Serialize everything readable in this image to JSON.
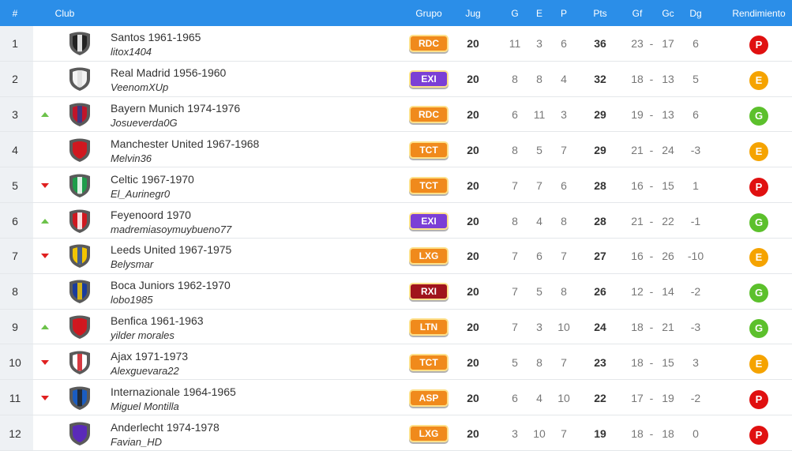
{
  "table": {
    "header": [
      "#",
      "Club",
      "Grupo",
      "Jug",
      "G",
      "E",
      "P",
      "Pts",
      "Gf",
      "Gc",
      "Dg",
      "Rendimiento"
    ],
    "separator": "-",
    "header_color": "#2b8ee8",
    "trend_colors": {
      "up": "#6cc24a",
      "down": "#e02020"
    },
    "rating_colors": {
      "P": "#e01010",
      "E": "#f5a300",
      "G": "#5cc02c"
    },
    "rows": [
      {
        "pos": 1,
        "trend": null,
        "club": "Santos 1961-1965",
        "user": "litox1404",
        "group": "RDC",
        "group_color": "#f08a1c",
        "crest": [
          "#222222",
          "#ffffff"
        ],
        "jug": 20,
        "g": 11,
        "e": 3,
        "p": 6,
        "pts": 36,
        "gf": 23,
        "gc": 17,
        "dg": 6,
        "rating": "P"
      },
      {
        "pos": 2,
        "trend": null,
        "club": "Real Madrid 1956-1960",
        "user": "VeenomXUp",
        "group": "EXI",
        "group_color": "#7b3fd6",
        "crest": [
          "#f4f4f4",
          "#dddddd"
        ],
        "jug": 20,
        "g": 8,
        "e": 8,
        "p": 4,
        "pts": 32,
        "gf": 18,
        "gc": 13,
        "dg": 5,
        "rating": "E"
      },
      {
        "pos": 3,
        "trend": "up",
        "club": "Bayern Munich 1974-1976",
        "user": "Josueverda0G",
        "group": "RDC",
        "group_color": "#f08a1c",
        "crest": [
          "#c0152a",
          "#2a3c8c"
        ],
        "jug": 20,
        "g": 6,
        "e": 11,
        "p": 3,
        "pts": 29,
        "gf": 19,
        "gc": 13,
        "dg": 6,
        "rating": "G"
      },
      {
        "pos": 4,
        "trend": null,
        "club": "Manchester United 1967-1968",
        "user": "Melvin36",
        "group": "TCT",
        "group_color": "#f08a1c",
        "crest": [
          "#d01820",
          "#d01820"
        ],
        "jug": 20,
        "g": 8,
        "e": 5,
        "p": 7,
        "pts": 29,
        "gf": 21,
        "gc": 24,
        "dg": -3,
        "rating": "E"
      },
      {
        "pos": 5,
        "trend": "down",
        "club": "Celtic 1967-1970",
        "user": "El_Aurinegr0",
        "group": "TCT",
        "group_color": "#f08a1c",
        "crest": [
          "#1e9c4a",
          "#ffffff"
        ],
        "jug": 20,
        "g": 7,
        "e": 7,
        "p": 6,
        "pts": 28,
        "gf": 16,
        "gc": 15,
        "dg": 1,
        "rating": "P"
      },
      {
        "pos": 6,
        "trend": "up",
        "club": "Feyenoord 1970",
        "user": "madremiasoymuybueno77",
        "group": "EXI",
        "group_color": "#7b3fd6",
        "crest": [
          "#d01820",
          "#ffffff"
        ],
        "jug": 20,
        "g": 8,
        "e": 4,
        "p": 8,
        "pts": 28,
        "gf": 21,
        "gc": 22,
        "dg": -1,
        "rating": "G"
      },
      {
        "pos": 7,
        "trend": "down",
        "club": "Leeds United 1967-1975",
        "user": "Belysmar",
        "group": "LXG",
        "group_color": "#f08a1c",
        "crest": [
          "#f2c500",
          "#2a4ca0"
        ],
        "jug": 20,
        "g": 7,
        "e": 6,
        "p": 7,
        "pts": 27,
        "gf": 16,
        "gc": 26,
        "dg": -10,
        "rating": "E"
      },
      {
        "pos": 8,
        "trend": null,
        "club": "Boca Juniors 1962-1970",
        "user": "lobo1985",
        "group": "RXI",
        "group_color": "#a0141c",
        "crest": [
          "#1a3c9c",
          "#f2c500"
        ],
        "jug": 20,
        "g": 7,
        "e": 5,
        "p": 8,
        "pts": 26,
        "gf": 12,
        "gc": 14,
        "dg": -2,
        "rating": "G"
      },
      {
        "pos": 9,
        "trend": "up",
        "club": "Benfica 1961-1963",
        "user": "yilder morales",
        "group": "LTN",
        "group_color": "#f08a1c",
        "crest": [
          "#d01820",
          "#d01820"
        ],
        "jug": 20,
        "g": 7,
        "e": 3,
        "p": 10,
        "pts": 24,
        "gf": 18,
        "gc": 21,
        "dg": -3,
        "rating": "G"
      },
      {
        "pos": 10,
        "trend": "down",
        "club": "Ajax 1971-1973",
        "user": "Alexguevara22",
        "group": "TCT",
        "group_color": "#f08a1c",
        "crest": [
          "#ffffff",
          "#d01820"
        ],
        "jug": 20,
        "g": 5,
        "e": 8,
        "p": 7,
        "pts": 23,
        "gf": 18,
        "gc": 15,
        "dg": 3,
        "rating": "E"
      },
      {
        "pos": 11,
        "trend": "down",
        "club": "Internazionale 1964-1965",
        "user": "Miguel Montilla",
        "group": "ASP",
        "group_color": "#f08a1c",
        "crest": [
          "#1a5cc0",
          "#222222"
        ],
        "jug": 20,
        "g": 6,
        "e": 4,
        "p": 10,
        "pts": 22,
        "gf": 17,
        "gc": 19,
        "dg": -2,
        "rating": "P"
      },
      {
        "pos": 12,
        "trend": null,
        "club": "Anderlecht 1974-1978",
        "user": "Favian_HD",
        "group": "LXG",
        "group_color": "#f08a1c",
        "crest": [
          "#5a2ab8",
          "#5a2ab8"
        ],
        "jug": 20,
        "g": 3,
        "e": 10,
        "p": 7,
        "pts": 19,
        "gf": 18,
        "gc": 18,
        "dg": 0,
        "rating": "P"
      }
    ]
  }
}
